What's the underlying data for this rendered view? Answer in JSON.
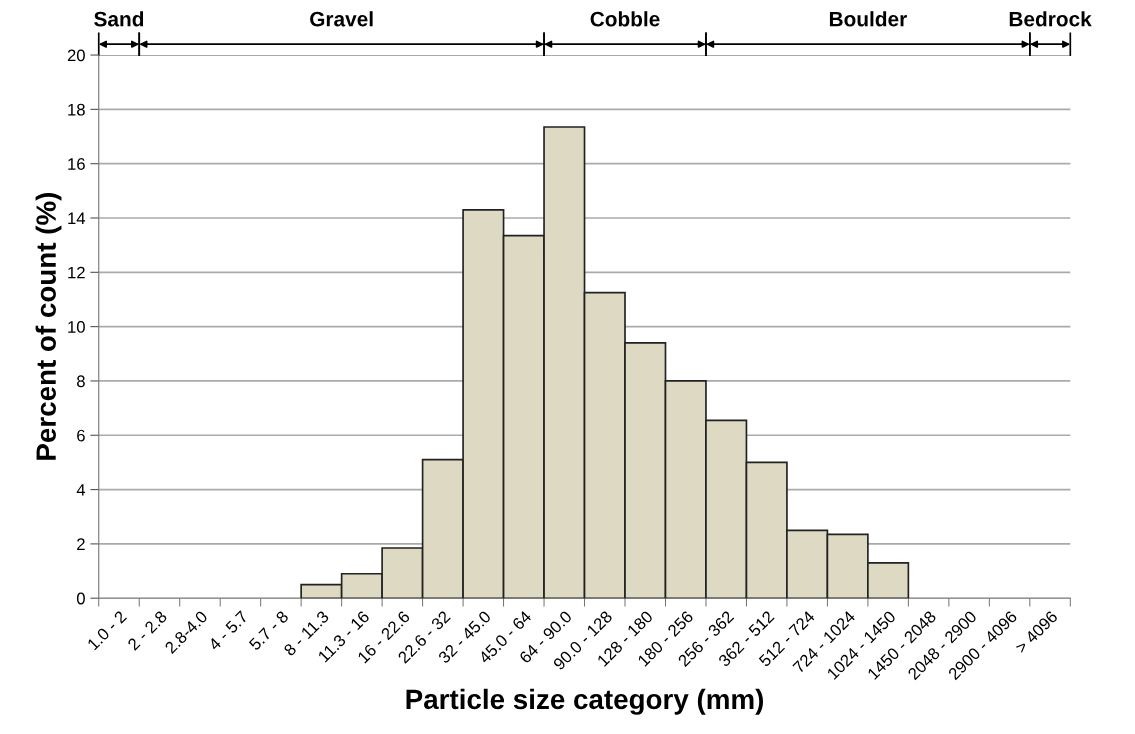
{
  "chart_data": {
    "type": "bar",
    "xlabel": "Particle size category (mm)",
    "ylabel": "Percent of count (%)",
    "categories": [
      "1.0 - 2",
      "2 - 2.8",
      "2.8-4.0",
      "4 - 5.7",
      "5.7 - 8",
      "8 - 11.3",
      "11.3 - 16",
      "16 - 22.6",
      "22.6 - 32",
      "32 - 45.0",
      "45.0 - 64",
      "64 - 90.0",
      "90.0 - 128",
      "128 - 180",
      "180 - 256",
      "256 - 362",
      "362 - 512",
      "512 - 724",
      "724 - 1024",
      "1024 - 1450",
      "1450 - 2048",
      "2048 - 2900",
      "2900 - 4096",
      "> 4096"
    ],
    "values": [
      0,
      0,
      0,
      0,
      0,
      0.5,
      0.9,
      1.85,
      5.1,
      14.3,
      13.35,
      17.35,
      11.25,
      9.4,
      8.0,
      6.55,
      5.0,
      2.5,
      2.35,
      1.3,
      0,
      0,
      0,
      0
    ],
    "color": "#ddd9c3",
    "ylim": [
      0,
      20
    ],
    "yticks": [
      0,
      2,
      4,
      6,
      8,
      10,
      12,
      14,
      16,
      18,
      20
    ],
    "grid": "y",
    "annotations": [
      "Sand",
      "Gravel",
      "Cobble",
      "Boulder",
      "Bedrock"
    ]
  }
}
